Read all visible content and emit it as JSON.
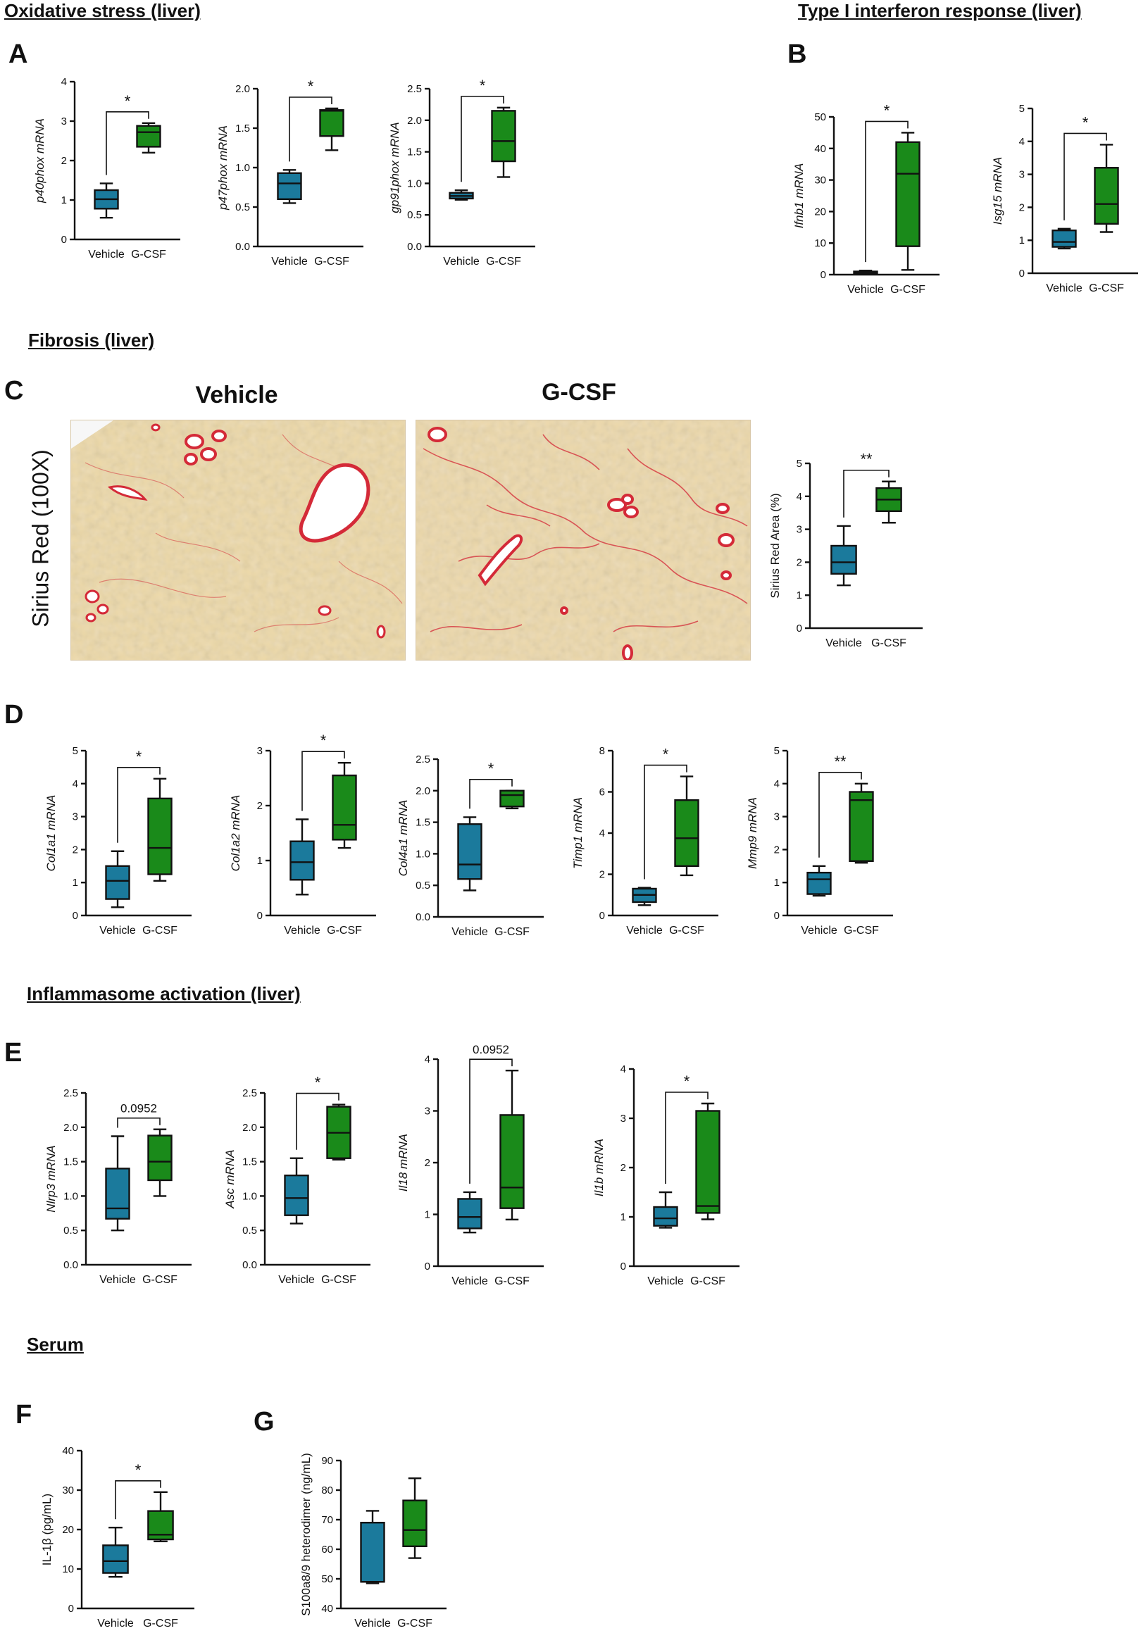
{
  "headings": {
    "oxidative": "Oxidative stress (liver)",
    "interferon": "Type I interferon response (liver)",
    "fibrosis": "Fibrosis (liver)",
    "inflammasome": "Inflammasome activation (liver)",
    "serum": "Serum"
  },
  "panel_letters": [
    "A",
    "B",
    "C",
    "D",
    "E",
    "F",
    "G"
  ],
  "micrographs": {
    "stain_label": "Sirius Red (100X)",
    "vehicle_title": "Vehicle",
    "gcsf_title": "G-CSF"
  },
  "colors": {
    "vehicle": "#1b7a9c",
    "gcsf": "#1a8a1a",
    "stroke": "#111111",
    "tissue": "#eedcac",
    "collagen": "#d42a38",
    "vessel": "#ffffff"
  },
  "chart_data": [
    {
      "id": "A1",
      "type": "boxplot",
      "ylabel": "p40phox mRNA",
      "ylim": [
        0,
        4
      ],
      "yticks": [
        "0",
        "1",
        "2",
        "3",
        "4"
      ],
      "categories": [
        "Vehicle",
        "G-CSF"
      ],
      "sig": "*",
      "boxes": [
        {
          "min": 0.55,
          "q1": 0.78,
          "median": 1.02,
          "q3": 1.25,
          "max": 1.42
        },
        {
          "min": 2.2,
          "q1": 2.35,
          "median": 2.72,
          "q3": 2.88,
          "max": 2.95
        }
      ]
    },
    {
      "id": "A2",
      "type": "boxplot",
      "ylabel": "p47phox mRNA",
      "ylim": [
        0,
        2.0
      ],
      "yticks": [
        "0.0",
        "0.5",
        "1.0",
        "1.5",
        "2.0"
      ],
      "categories": [
        "Vehicle",
        "G-CSF"
      ],
      "sig": "*",
      "boxes": [
        {
          "min": 0.55,
          "q1": 0.6,
          "median": 0.8,
          "q3": 0.93,
          "max": 0.97
        },
        {
          "min": 1.22,
          "q1": 1.4,
          "median": 1.72,
          "q3": 1.73,
          "max": 1.75
        }
      ]
    },
    {
      "id": "A3",
      "type": "boxplot",
      "ylabel": "gp91phox mRNA",
      "ylim": [
        0,
        2.5
      ],
      "yticks": [
        "0.0",
        "0.5",
        "1.0",
        "1.5",
        "2.0",
        "2.5"
      ],
      "categories": [
        "Vehicle",
        "G-CSF"
      ],
      "sig": "*",
      "boxes": [
        {
          "min": 0.74,
          "q1": 0.76,
          "median": 0.8,
          "q3": 0.85,
          "max": 0.89
        },
        {
          "min": 1.1,
          "q1": 1.35,
          "median": 1.67,
          "q3": 2.15,
          "max": 2.2
        }
      ]
    },
    {
      "id": "B1",
      "type": "boxplot",
      "ylabel": "Ifnb1 mRNA",
      "ylim": [
        0,
        50
      ],
      "yticks": [
        "0",
        "10",
        "20",
        "30",
        "40",
        "50"
      ],
      "categories": [
        "Vehicle",
        "G-CSF"
      ],
      "sig": "*",
      "boxes": [
        {
          "min": 0.2,
          "q1": 0.4,
          "median": 0.7,
          "q3": 1.0,
          "max": 1.3
        },
        {
          "min": 1.5,
          "q1": 9,
          "median": 32,
          "q3": 42,
          "max": 45
        }
      ]
    },
    {
      "id": "B2",
      "type": "boxplot",
      "ylabel": "Isg15 mRNA",
      "ylim": [
        0,
        5
      ],
      "yticks": [
        "0",
        "1",
        "2",
        "3",
        "4",
        "5"
      ],
      "categories": [
        "Vehicle",
        "G-CSF"
      ],
      "sig": "*",
      "boxes": [
        {
          "min": 0.75,
          "q1": 0.8,
          "median": 0.95,
          "q3": 1.3,
          "max": 1.35
        },
        {
          "min": 1.25,
          "q1": 1.5,
          "median": 2.1,
          "q3": 3.2,
          "max": 3.9
        }
      ]
    },
    {
      "id": "C",
      "type": "boxplot",
      "ylabel": "Sirius Red Area (%)",
      "ylim": [
        0,
        5
      ],
      "yticks": [
        "0",
        "1",
        "2",
        "3",
        "4",
        "5"
      ],
      "categories": [
        "Vehicle",
        "G-CSF"
      ],
      "sig": "**",
      "boxes": [
        {
          "min": 1.3,
          "q1": 1.65,
          "median": 2.0,
          "q3": 2.5,
          "max": 3.1
        },
        {
          "min": 3.2,
          "q1": 3.55,
          "median": 3.9,
          "q3": 4.25,
          "max": 4.45
        }
      ]
    },
    {
      "id": "D1",
      "type": "boxplot",
      "ylabel": "Col1a1 mRNA",
      "ylim": [
        0,
        5
      ],
      "yticks": [
        "0",
        "1",
        "2",
        "3",
        "4",
        "5"
      ],
      "categories": [
        "Vehicle",
        "G-CSF"
      ],
      "sig": "*",
      "boxes": [
        {
          "min": 0.25,
          "q1": 0.5,
          "median": 1.05,
          "q3": 1.5,
          "max": 1.95
        },
        {
          "min": 1.05,
          "q1": 1.25,
          "median": 2.05,
          "q3": 3.55,
          "max": 4.15
        }
      ]
    },
    {
      "id": "D2",
      "type": "boxplot",
      "ylabel": "Col1a2 mRNA",
      "ylim": [
        0,
        3
      ],
      "yticks": [
        "0",
        "1",
        "2",
        "3"
      ],
      "categories": [
        "Vehicle",
        "G-CSF"
      ],
      "sig": "*",
      "boxes": [
        {
          "min": 0.38,
          "q1": 0.65,
          "median": 0.97,
          "q3": 1.35,
          "max": 1.75
        },
        {
          "min": 1.23,
          "q1": 1.38,
          "median": 1.65,
          "q3": 2.55,
          "max": 2.78
        }
      ]
    },
    {
      "id": "D3",
      "type": "boxplot",
      "ylabel": "Col4a1 mRNA",
      "ylim": [
        0,
        2.5
      ],
      "yticks": [
        "0.0",
        "0.5",
        "1.0",
        "1.5",
        "2.0",
        "2.5"
      ],
      "categories": [
        "Vehicle",
        "G-CSF"
      ],
      "sig": "*",
      "boxes": [
        {
          "min": 0.42,
          "q1": 0.6,
          "median": 0.83,
          "q3": 1.47,
          "max": 1.58
        },
        {
          "min": 1.72,
          "q1": 1.75,
          "median": 1.93,
          "q3": 2.0,
          "max": 2.0
        }
      ]
    },
    {
      "id": "D4",
      "type": "boxplot",
      "ylabel": "Timp1 mRNA",
      "ylim": [
        0,
        8
      ],
      "yticks": [
        "0",
        "2",
        "4",
        "6",
        "8"
      ],
      "categories": [
        "Vehicle",
        "G-CSF"
      ],
      "sig": "*",
      "boxes": [
        {
          "min": 0.5,
          "q1": 0.65,
          "median": 1.0,
          "q3": 1.3,
          "max": 1.35
        },
        {
          "min": 1.95,
          "q1": 2.4,
          "median": 3.75,
          "q3": 5.6,
          "max": 6.75
        }
      ]
    },
    {
      "id": "D5",
      "type": "boxplot",
      "ylabel": "Mmp9 mRNA",
      "ylim": [
        0,
        5
      ],
      "yticks": [
        "0",
        "1",
        "2",
        "3",
        "4",
        "5"
      ],
      "categories": [
        "Vehicle",
        "G-CSF"
      ],
      "sig": "**",
      "boxes": [
        {
          "min": 0.6,
          "q1": 0.65,
          "median": 1.1,
          "q3": 1.3,
          "max": 1.5
        },
        {
          "min": 1.6,
          "q1": 1.65,
          "median": 3.5,
          "q3": 3.75,
          "max": 4.0
        }
      ]
    },
    {
      "id": "E1",
      "type": "boxplot",
      "ylabel": "Nlrp3 mRNA",
      "ylim": [
        0,
        2.5
      ],
      "yticks": [
        "0.0",
        "0.5",
        "1.0",
        "1.5",
        "2.0",
        "2.5"
      ],
      "categories": [
        "Vehicle",
        "G-CSF"
      ],
      "sig": "0.0952",
      "boxes": [
        {
          "min": 0.5,
          "q1": 0.67,
          "median": 0.82,
          "q3": 1.4,
          "max": 1.87
        },
        {
          "min": 1.0,
          "q1": 1.23,
          "median": 1.5,
          "q3": 1.88,
          "max": 1.97
        }
      ]
    },
    {
      "id": "E2",
      "type": "boxplot",
      "ylabel": "Asc mRNA",
      "ylim": [
        0,
        2.5
      ],
      "yticks": [
        "0.0",
        "0.5",
        "1.0",
        "1.5",
        "2.0",
        "2.5"
      ],
      "categories": [
        "Vehicle",
        "G-CSF"
      ],
      "sig": "*",
      "boxes": [
        {
          "min": 0.6,
          "q1": 0.72,
          "median": 0.97,
          "q3": 1.3,
          "max": 1.55
        },
        {
          "min": 1.53,
          "q1": 1.55,
          "median": 1.92,
          "q3": 2.3,
          "max": 2.33
        }
      ]
    },
    {
      "id": "E3",
      "type": "boxplot",
      "ylabel": "Il18 mRNA",
      "ylim": [
        0,
        4
      ],
      "yticks": [
        "0",
        "1",
        "2",
        "3",
        "4"
      ],
      "categories": [
        "Vehicle",
        "G-CSF"
      ],
      "sig": "0.0952",
      "boxes": [
        {
          "min": 0.65,
          "q1": 0.73,
          "median": 0.95,
          "q3": 1.3,
          "max": 1.43
        },
        {
          "min": 0.9,
          "q1": 1.12,
          "median": 1.52,
          "q3": 2.92,
          "max": 3.78
        }
      ]
    },
    {
      "id": "E4",
      "type": "boxplot",
      "ylabel": "Il1b mRNA",
      "ylim": [
        0,
        4
      ],
      "yticks": [
        "0",
        "1",
        "2",
        "3",
        "4"
      ],
      "categories": [
        "Vehicle",
        "G-CSF"
      ],
      "sig": "*",
      "boxes": [
        {
          "min": 0.78,
          "q1": 0.82,
          "median": 0.97,
          "q3": 1.2,
          "max": 1.5
        },
        {
          "min": 0.95,
          "q1": 1.08,
          "median": 1.22,
          "q3": 3.15,
          "max": 3.3
        }
      ]
    },
    {
      "id": "F",
      "type": "boxplot",
      "ylabel": "IL-1β (pg/mL)",
      "ylim": [
        0,
        40
      ],
      "yticks": [
        "0",
        "10",
        "20",
        "30",
        "40"
      ],
      "categories": [
        "Vehicle",
        "G-CSF"
      ],
      "sig": "*",
      "boxes": [
        {
          "min": 8,
          "q1": 9,
          "median": 12,
          "q3": 16,
          "max": 20.5
        },
        {
          "min": 17,
          "q1": 17.5,
          "median": 18.7,
          "q3": 24.7,
          "max": 29.5
        }
      ]
    },
    {
      "id": "G",
      "type": "boxplot",
      "ylabel": "S100a8/9 heterodimer (ng/mL)",
      "ylim": [
        40,
        90
      ],
      "yticks": [
        "40",
        "50",
        "60",
        "70",
        "80",
        "90"
      ],
      "categories": [
        "Vehicle",
        "G-CSF"
      ],
      "sig": "",
      "boxes": [
        {
          "min": 48.5,
          "q1": 49,
          "median": 49,
          "q3": 69,
          "max": 73
        },
        {
          "min": 57,
          "q1": 61,
          "median": 66.5,
          "q3": 76.5,
          "max": 84
        }
      ]
    }
  ]
}
